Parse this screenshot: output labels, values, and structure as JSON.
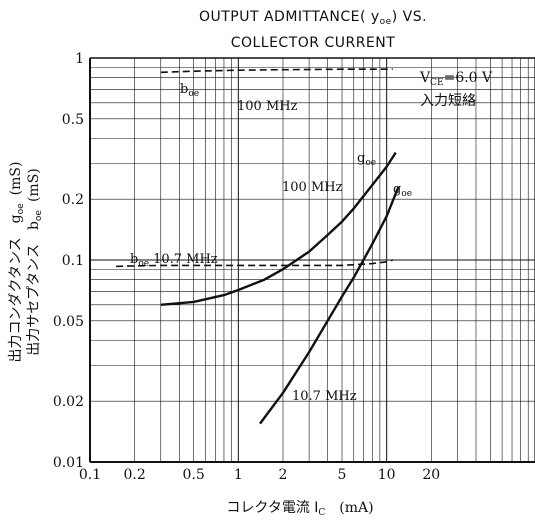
{
  "chart_data": {
    "type": "line",
    "title_lines": [
      "OUTPUT ADMITTANCE( y",
      "oe",
      ") VS.",
      "COLLECTOR CURRENT"
    ],
    "x_scale": "log",
    "y_scale": "log",
    "xlim": [
      0.1,
      100
    ],
    "ylim": [
      0.01,
      1
    ],
    "x_tick_labels": [
      {
        "v": 0.1,
        "label": "0.1"
      },
      {
        "v": 0.2,
        "label": "0.2"
      },
      {
        "v": 0.5,
        "label": "0.5"
      },
      {
        "v": 1,
        "label": "1"
      },
      {
        "v": 2,
        "label": "2"
      },
      {
        "v": 5,
        "label": "5"
      },
      {
        "v": 10,
        "label": "10"
      },
      {
        "v": 20,
        "label": "20"
      }
    ],
    "y_tick_labels": [
      {
        "v": 0.01,
        "label": "0.01"
      },
      {
        "v": 0.02,
        "label": "0.02"
      },
      {
        "v": 0.05,
        "label": "0.05"
      },
      {
        "v": 0.1,
        "label": "0.1"
      },
      {
        "v": 0.2,
        "label": "0.2"
      },
      {
        "v": 0.5,
        "label": "0.5"
      },
      {
        "v": 1,
        "label": "1"
      }
    ],
    "xlabel": {
      "main": "コレクタ電流 I",
      "sub": "C",
      "unit": "(mA)"
    },
    "ylabel": {
      "line1": {
        "jp": "出力コンダクタンス",
        "sym": "g",
        "sub": "oe",
        "unit": "(mS)"
      },
      "line2": {
        "jp": "出力サセプタンス",
        "sym": "b",
        "sub": "oe",
        "unit": "(mS)"
      }
    },
    "conditions": {
      "line1": {
        "main": "V",
        "sub": "CE",
        "rest": "=6.0 V"
      },
      "line2": "入力短絡"
    },
    "series": [
      {
        "id": "boe-100",
        "style": "dashed",
        "x": [
          0.3,
          0.5,
          1,
          2,
          5,
          8,
          10,
          11
        ],
        "y": [
          0.85,
          0.86,
          0.87,
          0.875,
          0.88,
          0.88,
          0.88,
          0.88
        ]
      },
      {
        "id": "boe-10.7",
        "style": "dashed",
        "x": [
          0.15,
          0.2,
          0.3,
          0.5,
          1,
          2,
          5,
          8,
          10,
          11
        ],
        "y": [
          0.093,
          0.0935,
          0.094,
          0.094,
          0.094,
          0.094,
          0.094,
          0.096,
          0.098,
          0.1
        ]
      },
      {
        "id": "goe-100",
        "style": "solid",
        "x": [
          0.3,
          0.5,
          0.8,
          1,
          1.5,
          2,
          3,
          4,
          5,
          6,
          8,
          10,
          11.5
        ],
        "y": [
          0.06,
          0.062,
          0.067,
          0.071,
          0.08,
          0.09,
          0.11,
          0.133,
          0.155,
          0.18,
          0.235,
          0.29,
          0.34
        ]
      },
      {
        "id": "goe-10.7",
        "style": "solid",
        "x": [
          1.4,
          2,
          3,
          4,
          5,
          6,
          8,
          10,
          12
        ],
        "y": [
          0.0155,
          0.022,
          0.035,
          0.05,
          0.066,
          0.082,
          0.12,
          0.165,
          0.23
        ]
      }
    ],
    "curve_labels": [
      {
        "series": "boe-100",
        "sym": "b",
        "sub": "oe",
        "text": ""
      },
      {
        "series": "boe-100",
        "sym": "",
        "sub": "",
        "text": "100 MHz"
      },
      {
        "series": "boe-10.7",
        "sym": "b",
        "sub": "oe",
        "text": "10.7 MHz"
      },
      {
        "series": "goe-100",
        "sym": "g",
        "sub": "oe",
        "text": ""
      },
      {
        "series": "goe-100",
        "sym": "",
        "sub": "",
        "text": "100 MHz"
      },
      {
        "series": "goe-10.7",
        "sym": "g",
        "sub": "oe",
        "text": ""
      },
      {
        "series": "goe-10.7",
        "sym": "",
        "sub": "",
        "text": "10.7 MHz"
      }
    ]
  }
}
